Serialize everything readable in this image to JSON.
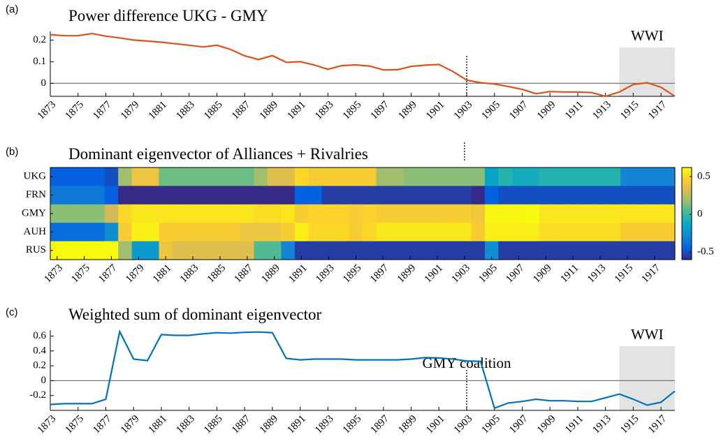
{
  "chart_data": [
    {
      "type": "line",
      "panel_label": "(a)",
      "title": "Power difference UKG - GMY",
      "x": [
        1873,
        1874,
        1875,
        1876,
        1877,
        1878,
        1879,
        1880,
        1881,
        1882,
        1883,
        1884,
        1885,
        1886,
        1887,
        1888,
        1889,
        1890,
        1891,
        1892,
        1893,
        1894,
        1895,
        1896,
        1897,
        1898,
        1899,
        1900,
        1901,
        1902,
        1903,
        1904,
        1905,
        1906,
        1907,
        1908,
        1909,
        1910,
        1911,
        1912,
        1913,
        1914,
        1915,
        1916,
        1917,
        1918
      ],
      "values": [
        0.225,
        0.22,
        0.22,
        0.23,
        0.218,
        0.21,
        0.2,
        0.195,
        0.19,
        0.183,
        0.176,
        0.168,
        0.176,
        0.156,
        0.127,
        0.11,
        0.128,
        0.097,
        0.1,
        0.085,
        0.065,
        0.082,
        0.085,
        0.08,
        0.062,
        0.063,
        0.078,
        0.084,
        0.087,
        0.055,
        0.015,
        0.003,
        -0.003,
        -0.015,
        -0.028,
        -0.048,
        -0.038,
        -0.04,
        -0.04,
        -0.043,
        -0.06,
        -0.04,
        -0.005,
        0.003,
        -0.018,
        -0.06
      ],
      "color": "#d95319",
      "xlim": [
        1873,
        1918
      ],
      "xticks": [
        1873,
        1875,
        1877,
        1879,
        1881,
        1883,
        1885,
        1887,
        1889,
        1891,
        1893,
        1895,
        1897,
        1899,
        1901,
        1903,
        1905,
        1907,
        1909,
        1911,
        1913,
        1915,
        1917
      ],
      "ylim": [
        -0.06,
        0.24
      ],
      "yticks": [
        0,
        0.1,
        0.2
      ],
      "hline": 0,
      "marker_line": 1903,
      "shade_x": [
        1914,
        1918
      ],
      "shade_label": "WWI"
    },
    {
      "type": "heatmap",
      "panel_label": "(b)",
      "title": "Dominant eigenvector of Alliances + Rivalries",
      "rows": [
        "UKG",
        "FRN",
        "GMY",
        "AUH",
        "RUS"
      ],
      "x": [
        1873,
        1874,
        1875,
        1876,
        1877,
        1878,
        1879,
        1880,
        1881,
        1882,
        1883,
        1884,
        1885,
        1886,
        1887,
        1888,
        1889,
        1890,
        1891,
        1892,
        1893,
        1894,
        1895,
        1896,
        1897,
        1898,
        1899,
        1900,
        1901,
        1902,
        1903,
        1904,
        1905,
        1906,
        1907,
        1908,
        1909,
        1910,
        1911,
        1912,
        1913,
        1914,
        1915,
        1916,
        1917,
        1918
      ],
      "z": [
        [
          -0.45,
          -0.45,
          -0.45,
          -0.45,
          -0.5,
          0.2,
          0.4,
          0.4,
          0.1,
          0.1,
          0.1,
          0.1,
          0.1,
          0.1,
          0.1,
          0.2,
          0.35,
          0.35,
          0.5,
          0.45,
          0.45,
          0.45,
          0.45,
          0.45,
          0.2,
          0.2,
          0.15,
          0.15,
          0.15,
          0.15,
          0.15,
          0.15,
          -0.15,
          -0.05,
          -0.1,
          -0.1,
          -0.05,
          -0.05,
          -0.05,
          -0.05,
          -0.05,
          -0.05,
          -0.3,
          -0.3,
          -0.3,
          -0.3
        ],
        [
          -0.35,
          -0.35,
          -0.35,
          -0.35,
          -0.45,
          -0.6,
          -0.6,
          -0.6,
          -0.6,
          -0.6,
          -0.6,
          -0.6,
          -0.6,
          -0.6,
          -0.6,
          -0.6,
          -0.6,
          -0.6,
          -0.45,
          -0.45,
          -0.55,
          -0.55,
          -0.55,
          -0.55,
          -0.55,
          -0.55,
          -0.55,
          -0.55,
          -0.55,
          -0.55,
          -0.55,
          -0.6,
          -0.45,
          -0.5,
          -0.5,
          -0.5,
          -0.5,
          -0.5,
          -0.5,
          -0.5,
          -0.5,
          -0.5,
          -0.5,
          -0.5,
          -0.5,
          -0.5
        ],
        [
          0.15,
          0.15,
          0.15,
          0.15,
          0.3,
          0.5,
          0.55,
          0.55,
          0.55,
          0.55,
          0.55,
          0.55,
          0.55,
          0.55,
          0.55,
          0.52,
          0.52,
          0.55,
          0.45,
          0.48,
          0.48,
          0.48,
          0.45,
          0.48,
          0.45,
          0.45,
          0.45,
          0.45,
          0.45,
          0.45,
          0.45,
          0.42,
          0.6,
          0.6,
          0.6,
          0.62,
          0.55,
          0.55,
          0.55,
          0.55,
          0.55,
          0.55,
          0.55,
          0.55,
          0.55,
          0.55
        ],
        [
          -0.4,
          -0.4,
          -0.4,
          -0.4,
          -0.25,
          0.45,
          0.58,
          0.58,
          0.45,
          0.45,
          0.45,
          0.45,
          0.45,
          0.45,
          0.4,
          0.4,
          0.4,
          0.45,
          0.58,
          0.5,
          0.5,
          0.5,
          0.45,
          0.5,
          0.55,
          0.55,
          0.55,
          0.55,
          0.55,
          0.55,
          0.55,
          0.45,
          0.58,
          0.58,
          0.58,
          0.58,
          0.52,
          0.52,
          0.52,
          0.52,
          0.52,
          0.52,
          0.45,
          0.45,
          0.45,
          0.45
        ],
        [
          0.62,
          0.62,
          0.62,
          0.62,
          0.62,
          0.2,
          -0.2,
          -0.2,
          0.4,
          0.35,
          0.35,
          0.35,
          0.35,
          0.35,
          0.35,
          0.05,
          0.05,
          -0.3,
          -0.55,
          -0.55,
          -0.55,
          -0.55,
          -0.55,
          -0.55,
          -0.55,
          -0.55,
          -0.55,
          -0.55,
          -0.55,
          -0.55,
          -0.55,
          -0.55,
          -0.25,
          -0.55,
          -0.55,
          -0.55,
          -0.55,
          -0.55,
          -0.55,
          -0.55,
          -0.55,
          -0.55,
          -0.55,
          -0.55,
          -0.55,
          -0.55
        ]
      ],
      "xlim": [
        1872.5,
        1918.5
      ],
      "xticks": [
        1873,
        1875,
        1877,
        1879,
        1881,
        1883,
        1885,
        1887,
        1889,
        1891,
        1893,
        1895,
        1897,
        1899,
        1901,
        1903,
        1905,
        1907,
        1909,
        1911,
        1913,
        1915,
        1917
      ],
      "clim": [
        -0.6,
        0.62
      ],
      "colorbar_ticks": [
        -0.5,
        0,
        0.5
      ],
      "marker_line": 1903
    },
    {
      "type": "line",
      "panel_label": "(c)",
      "title": "Weighted sum of dominant eigenvector",
      "x": [
        1873,
        1874,
        1875,
        1876,
        1877,
        1878,
        1879,
        1880,
        1881,
        1882,
        1883,
        1884,
        1885,
        1886,
        1887,
        1888,
        1889,
        1890,
        1891,
        1892,
        1893,
        1894,
        1895,
        1896,
        1897,
        1898,
        1899,
        1900,
        1901,
        1902,
        1903,
        1904,
        1905,
        1906,
        1907,
        1908,
        1909,
        1910,
        1911,
        1912,
        1913,
        1914,
        1915,
        1916,
        1917,
        1918
      ],
      "values": [
        -0.32,
        -0.31,
        -0.31,
        -0.31,
        -0.25,
        0.66,
        0.29,
        0.27,
        0.62,
        0.61,
        0.61,
        0.63,
        0.645,
        0.64,
        0.65,
        0.655,
        0.645,
        0.3,
        0.28,
        0.29,
        0.29,
        0.29,
        0.28,
        0.28,
        0.28,
        0.28,
        0.29,
        0.31,
        0.305,
        0.29,
        0.265,
        0.26,
        -0.37,
        -0.3,
        -0.28,
        -0.25,
        -0.27,
        -0.27,
        -0.28,
        -0.28,
        -0.23,
        -0.18,
        -0.25,
        -0.33,
        -0.29,
        -0.14
      ],
      "color": "#0072bd",
      "xlim": [
        1873,
        1918
      ],
      "xticks": [
        1873,
        1875,
        1877,
        1879,
        1881,
        1883,
        1885,
        1887,
        1889,
        1891,
        1893,
        1895,
        1897,
        1899,
        1901,
        1903,
        1905,
        1907,
        1909,
        1911,
        1913,
        1915,
        1917
      ],
      "ylim": [
        -0.4,
        0.68
      ],
      "yticks": [
        -0.2,
        0,
        0.2,
        0.4,
        0.6
      ],
      "hline": 0,
      "marker_line": 1903,
      "shade_x": [
        1914,
        1918
      ],
      "shade_label": "WWI",
      "annotation": "GMY coalition"
    }
  ]
}
